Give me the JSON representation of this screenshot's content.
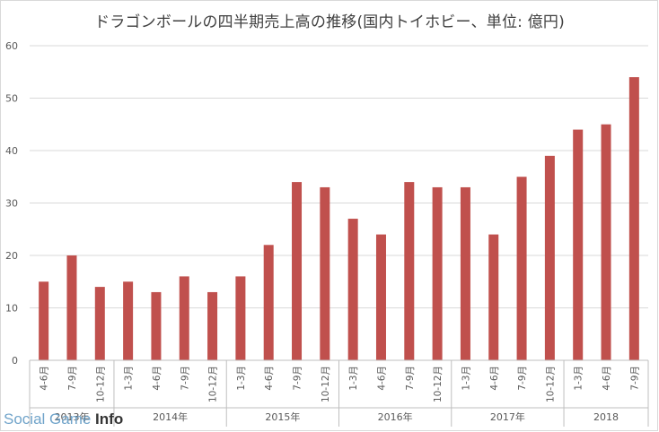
{
  "chart_data": {
    "type": "bar",
    "title": "ドラゴンボールの四半期売上高の推移(国内トイホビー、単位: 億円)",
    "xlabel": "",
    "ylabel": "",
    "ylim": [
      0,
      60
    ],
    "yticks": [
      0,
      10,
      20,
      30,
      40,
      50,
      60
    ],
    "grid": true,
    "legend": "none",
    "bar_color": "#c0504d",
    "categories": [
      "4-6月",
      "7-9月",
      "10-12月",
      "1-3月",
      "4-6月",
      "7-9月",
      "10-12月",
      "1-3月",
      "4-6月",
      "7-9月",
      "10-12月",
      "1-3月",
      "4-6月",
      "7-9月",
      "10-12月",
      "1-3月",
      "4-6月",
      "7-9月",
      "10-12月",
      "1-3月",
      "4-6月",
      "7-9月"
    ],
    "values": [
      15,
      20,
      14,
      15,
      13,
      16,
      13,
      16,
      22,
      34,
      33,
      27,
      24,
      34,
      33,
      33,
      24,
      35,
      39,
      44,
      45,
      54
    ],
    "year_groups": [
      {
        "label": "2013年",
        "count": 3
      },
      {
        "label": "2014年",
        "count": 4
      },
      {
        "label": "2015年",
        "count": 4
      },
      {
        "label": "2016年",
        "count": 4
      },
      {
        "label": "2017年",
        "count": 4
      },
      {
        "label": "2018",
        "count": 3
      }
    ]
  },
  "watermark": {
    "prefix": "Social Game ",
    "strong": "Info"
  }
}
